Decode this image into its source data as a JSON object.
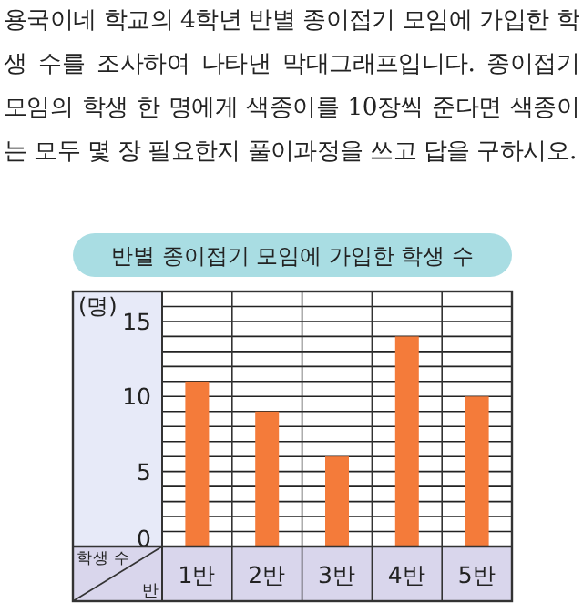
{
  "chart_data": {
    "type": "bar",
    "title": "반별 종이접기 모임에 가입한 학생 수",
    "subtitle": "용국이네 학교의 4학년 반별 종이접기 모임에 가입한 학생 수를 조사하여 나타낸 막대그래프입니다. 종이접기 모임의 학생 한 명에게 색종이를 10장씩 준다면 색종이는 모두 몇 장 필요한지 풀이과정을 쓰고 답을 구하시오.",
    "xlabel": "반",
    "ylabel": "학생 수",
    "annotations": [
      "(명)"
    ],
    "categories": [
      "1반",
      "2반",
      "3반",
      "4반",
      "5반"
    ],
    "values": [
      11,
      9,
      6,
      14,
      10
    ],
    "color": "#f47b3a",
    "ylim": [
      0,
      17
    ],
    "yticks": [
      0,
      {
        "value": 1,
        "label": null
      },
      {
        "value": 2,
        "label": null
      },
      {
        "value": 3,
        "label": null
      },
      {
        "value": 4,
        "label": null
      },
      5,
      {
        "value": 6,
        "label": null
      },
      {
        "value": 7,
        "label": null
      },
      {
        "value": 8,
        "label": null
      },
      {
        "value": 9,
        "label": null
      },
      10,
      {
        "value": 11,
        "label": null
      },
      {
        "value": 12,
        "label": null
      },
      {
        "value": 13,
        "label": null
      },
      {
        "value": 14,
        "label": null
      },
      15,
      {
        "value": 16,
        "label": null
      },
      {
        "value": 17,
        "label": null
      }
    ],
    "grid": true
  }
}
